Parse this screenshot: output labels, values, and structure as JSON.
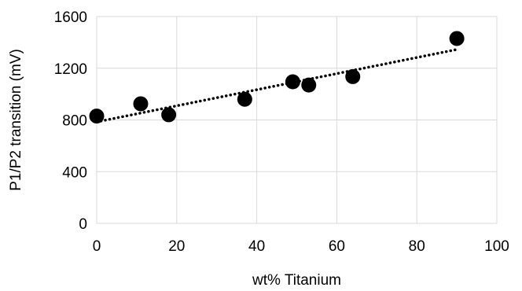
{
  "chart_data": {
    "type": "scatter",
    "xlabel": "wt%  Titanium",
    "ylabel": "P1/P2 transition (mV)",
    "xlim": [
      0,
      100
    ],
    "ylim": [
      0,
      1600
    ],
    "x_ticks": [
      0,
      20,
      40,
      60,
      80,
      100
    ],
    "y_ticks": [
      0,
      400,
      800,
      1200,
      1600
    ],
    "grid": true,
    "legend": "none",
    "series": [
      {
        "x": [
          0,
          11,
          18,
          37,
          49,
          53,
          64,
          90
        ],
        "y": [
          830,
          925,
          840,
          960,
          1095,
          1070,
          1135,
          1430
        ],
        "marker_color": "#000000"
      }
    ],
    "trendline": {
      "type": "linear",
      "style": "dotted",
      "color": "#000000",
      "x_range": [
        0,
        90
      ],
      "y_at_start": 785,
      "y_at_end": 1345
    }
  }
}
